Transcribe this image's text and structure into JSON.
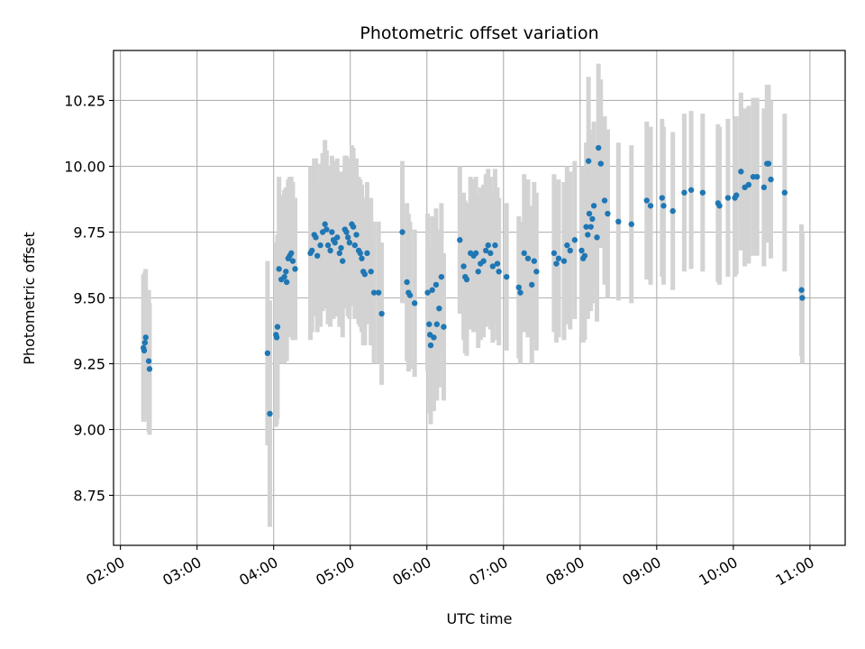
{
  "chart_data": {
    "type": "scatter",
    "title": "Photometric offset variation",
    "xlabel": "UTC time",
    "ylabel": "Photometric offset",
    "grid": true,
    "xlim": [
      1.91,
      11.46
    ],
    "ylim": [
      8.56,
      10.44
    ],
    "xticks": [
      2,
      3,
      4,
      5,
      6,
      7,
      8,
      9,
      10,
      11
    ],
    "xtick_labels": [
      "02:00",
      "03:00",
      "04:00",
      "05:00",
      "06:00",
      "07:00",
      "08:00",
      "09:00",
      "10:00",
      "11:00"
    ],
    "yticks": [
      8.75,
      9.0,
      9.25,
      9.5,
      9.75,
      10.0,
      10.25
    ],
    "ytick_labels": [
      "8.75",
      "9.00",
      "9.25",
      "9.50",
      "9.75",
      "10.00",
      "10.25"
    ],
    "point_color": "#1f77b4",
    "errorbar_color": "#d3d3d3",
    "points": [
      [
        2.3,
        9.31,
        0.28
      ],
      [
        2.32,
        9.33,
        0.27
      ],
      [
        2.33,
        9.35,
        0.26
      ],
      [
        2.31,
        9.3,
        0.27
      ],
      [
        2.37,
        9.26,
        0.27
      ],
      [
        2.38,
        9.23,
        0.25
      ],
      [
        3.92,
        9.29,
        0.35
      ],
      [
        3.95,
        9.06,
        0.43
      ],
      [
        4.03,
        9.36,
        0.35
      ],
      [
        4.04,
        9.35,
        0.33
      ],
      [
        4.05,
        9.39,
        0.35
      ],
      [
        4.07,
        9.61,
        0.35
      ],
      [
        4.1,
        9.57,
        0.32
      ],
      [
        4.14,
        9.58,
        0.33
      ],
      [
        4.16,
        9.6,
        0.32
      ],
      [
        4.17,
        9.56,
        0.3
      ],
      [
        4.19,
        9.65,
        0.3
      ],
      [
        4.21,
        9.66,
        0.3
      ],
      [
        4.23,
        9.67,
        0.29
      ],
      [
        4.25,
        9.64,
        0.3
      ],
      [
        4.28,
        9.61,
        0.27
      ],
      [
        4.48,
        9.67,
        0.33
      ],
      [
        4.5,
        9.68,
        0.31
      ],
      [
        4.53,
        9.74,
        0.29
      ],
      [
        4.55,
        9.73,
        0.3
      ],
      [
        4.57,
        9.66,
        0.29
      ],
      [
        4.61,
        9.7,
        0.31
      ],
      [
        4.64,
        9.75,
        0.3
      ],
      [
        4.67,
        9.78,
        0.32
      ],
      [
        4.69,
        9.76,
        0.3
      ],
      [
        4.71,
        9.7,
        0.3
      ],
      [
        4.74,
        9.68,
        0.29
      ],
      [
        4.76,
        9.75,
        0.29
      ],
      [
        4.78,
        9.72,
        0.3
      ],
      [
        4.8,
        9.71,
        0.28
      ],
      [
        4.83,
        9.73,
        0.3
      ],
      [
        4.86,
        9.67,
        0.28
      ],
      [
        4.88,
        9.69,
        0.29
      ],
      [
        4.9,
        9.64,
        0.29
      ],
      [
        4.93,
        9.76,
        0.28
      ],
      [
        4.95,
        9.75,
        0.29
      ],
      [
        4.97,
        9.73,
        0.3
      ],
      [
        4.99,
        9.71,
        0.29
      ],
      [
        5.02,
        9.78,
        0.3
      ],
      [
        5.04,
        9.77,
        0.3
      ],
      [
        5.06,
        9.7,
        0.28
      ],
      [
        5.08,
        9.74,
        0.29
      ],
      [
        5.11,
        9.68,
        0.28
      ],
      [
        5.13,
        9.67,
        0.28
      ],
      [
        5.15,
        9.65,
        0.28
      ],
      [
        5.17,
        9.6,
        0.28
      ],
      [
        5.19,
        9.59,
        0.27
      ],
      [
        5.22,
        9.67,
        0.27
      ],
      [
        5.27,
        9.6,
        0.28
      ],
      [
        5.31,
        9.52,
        0.27
      ],
      [
        5.37,
        9.52,
        0.27
      ],
      [
        5.41,
        9.44,
        0.27
      ],
      [
        5.68,
        9.75,
        0.27
      ],
      [
        5.74,
        9.56,
        0.3
      ],
      [
        5.76,
        9.52,
        0.3
      ],
      [
        5.78,
        9.51,
        0.28
      ],
      [
        5.84,
        9.48,
        0.28
      ],
      [
        6.01,
        9.52,
        0.3
      ],
      [
        6.03,
        9.4,
        0.3
      ],
      [
        6.04,
        9.36,
        0.3
      ],
      [
        6.05,
        9.32,
        0.3
      ],
      [
        6.07,
        9.53,
        0.28
      ],
      [
        6.09,
        9.35,
        0.28
      ],
      [
        6.12,
        9.55,
        0.29
      ],
      [
        6.13,
        9.4,
        0.29
      ],
      [
        6.16,
        9.46,
        0.3
      ],
      [
        6.19,
        9.58,
        0.28
      ],
      [
        6.22,
        9.39,
        0.28
      ],
      [
        6.43,
        9.72,
        0.28
      ],
      [
        6.48,
        9.62,
        0.28
      ],
      [
        6.5,
        9.58,
        0.29
      ],
      [
        6.52,
        9.57,
        0.29
      ],
      [
        6.57,
        9.67,
        0.29
      ],
      [
        6.61,
        9.66,
        0.29
      ],
      [
        6.64,
        9.67,
        0.29
      ],
      [
        6.67,
        9.6,
        0.29
      ],
      [
        6.7,
        9.63,
        0.29
      ],
      [
        6.74,
        9.64,
        0.29
      ],
      [
        6.77,
        9.68,
        0.29
      ],
      [
        6.8,
        9.7,
        0.29
      ],
      [
        6.83,
        9.67,
        0.29
      ],
      [
        6.86,
        9.62,
        0.29
      ],
      [
        6.89,
        9.7,
        0.29
      ],
      [
        6.92,
        9.63,
        0.29
      ],
      [
        6.94,
        9.6,
        0.28
      ],
      [
        7.04,
        9.58,
        0.28
      ],
      [
        7.2,
        9.54,
        0.27
      ],
      [
        7.22,
        9.52,
        0.27
      ],
      [
        7.27,
        9.67,
        0.3
      ],
      [
        7.32,
        9.65,
        0.3
      ],
      [
        7.37,
        9.55,
        0.3
      ],
      [
        7.4,
        9.64,
        0.3
      ],
      [
        7.43,
        9.6,
        0.3
      ],
      [
        7.66,
        9.67,
        0.3
      ],
      [
        7.69,
        9.63,
        0.3
      ],
      [
        7.72,
        9.65,
        0.3
      ],
      [
        7.79,
        9.64,
        0.3
      ],
      [
        7.83,
        9.7,
        0.3
      ],
      [
        7.87,
        9.68,
        0.3
      ],
      [
        7.93,
        9.72,
        0.3
      ],
      [
        8.02,
        9.68,
        0.32
      ],
      [
        8.04,
        9.65,
        0.32
      ],
      [
        8.06,
        9.66,
        0.32
      ],
      [
        8.08,
        9.77,
        0.32
      ],
      [
        8.1,
        9.74,
        0.32
      ],
      [
        8.12,
        9.82,
        0.32
      ],
      [
        8.14,
        9.77,
        0.32
      ],
      [
        8.16,
        9.8,
        0.32
      ],
      [
        8.18,
        9.85,
        0.32
      ],
      [
        8.11,
        10.02,
        0.32
      ],
      [
        8.22,
        9.73,
        0.32
      ],
      [
        8.24,
        10.07,
        0.32
      ],
      [
        8.27,
        10.01,
        0.32
      ],
      [
        8.32,
        9.87,
        0.32
      ],
      [
        8.36,
        9.82,
        0.32
      ],
      [
        8.5,
        9.79,
        0.3
      ],
      [
        8.67,
        9.78,
        0.3
      ],
      [
        8.87,
        9.87,
        0.3
      ],
      [
        8.92,
        9.85,
        0.3
      ],
      [
        9.07,
        9.88,
        0.3
      ],
      [
        9.09,
        9.85,
        0.3
      ],
      [
        9.21,
        9.83,
        0.3
      ],
      [
        9.36,
        9.9,
        0.3
      ],
      [
        9.45,
        9.91,
        0.3
      ],
      [
        9.6,
        9.9,
        0.3
      ],
      [
        9.8,
        9.86,
        0.3
      ],
      [
        9.82,
        9.85,
        0.3
      ],
      [
        9.93,
        9.88,
        0.3
      ],
      [
        10.02,
        9.88,
        0.3
      ],
      [
        10.04,
        9.89,
        0.3
      ],
      [
        10.1,
        9.98,
        0.3
      ],
      [
        10.15,
        9.92,
        0.3
      ],
      [
        10.2,
        9.93,
        0.3
      ],
      [
        10.26,
        9.96,
        0.3
      ],
      [
        10.31,
        9.96,
        0.3
      ],
      [
        10.4,
        9.92,
        0.3
      ],
      [
        10.44,
        10.01,
        0.3
      ],
      [
        10.46,
        10.01,
        0.3
      ],
      [
        10.49,
        9.95,
        0.3
      ],
      [
        10.67,
        9.9,
        0.3
      ],
      [
        10.89,
        9.53,
        0.25
      ],
      [
        10.9,
        9.5,
        0.25
      ]
    ]
  }
}
